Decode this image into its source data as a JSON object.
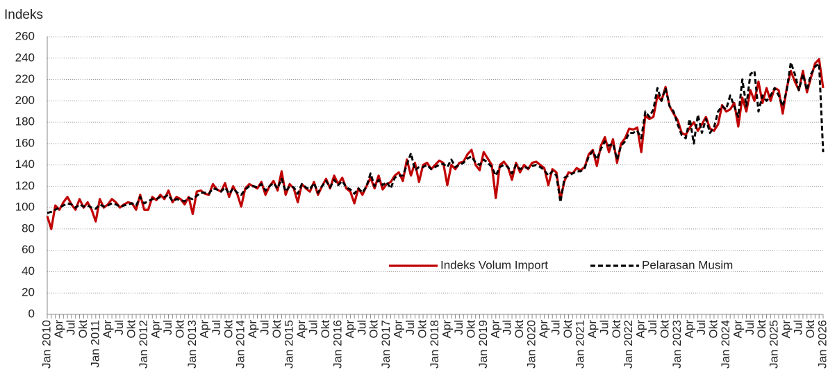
{
  "chart_data": {
    "type": "line",
    "ylabel": "Indeks",
    "ylim": [
      0,
      260
    ],
    "yticks": [
      0,
      20,
      40,
      60,
      80,
      100,
      120,
      140,
      160,
      180,
      200,
      220,
      240,
      260
    ],
    "grid": true,
    "categories": [
      "Jan 2010",
      null,
      null,
      "Apr",
      null,
      null,
      "Jul",
      null,
      null,
      "Okt",
      null,
      null,
      "Jan 2011",
      null,
      null,
      "Apr",
      null,
      null,
      "Jul",
      null,
      null,
      "Okt",
      null,
      null,
      "Jan 2012",
      null,
      null,
      "Apr",
      null,
      null,
      "Jul",
      null,
      null,
      "Okt",
      null,
      null,
      "Jan 2013",
      null,
      null,
      "Apr",
      null,
      null,
      "Jul",
      null,
      null,
      "Okt",
      null,
      null,
      "Jan 2014",
      null,
      null,
      "Apr",
      null,
      null,
      "Jul",
      null,
      null,
      "Okt",
      null,
      null,
      "Jan 2015",
      null,
      null,
      "Apr",
      null,
      null,
      "Jul",
      null,
      null,
      "Okt",
      null,
      null,
      "Jan 2016",
      null,
      null,
      "Apr",
      null,
      null,
      "Jul",
      null,
      null,
      "Okt",
      null,
      null,
      "Jan 2017",
      null,
      null,
      "Apr",
      null,
      null,
      "Jul",
      null,
      null,
      "Okt",
      null,
      null,
      "Jan 2018",
      null,
      null,
      "Apr",
      null,
      null,
      "Jul",
      null,
      null,
      "Okt",
      null,
      null,
      "Jan 2019",
      null,
      null,
      "Apr",
      null,
      null,
      "Jul",
      null,
      null,
      "Okt",
      null,
      null,
      "Jan 2020",
      null,
      null,
      "Apr",
      null,
      null,
      "Jul",
      null,
      null,
      "Okt",
      null,
      null,
      "Jan 2021",
      null,
      null,
      "Apr",
      null,
      null,
      "Jul",
      null,
      null,
      "Okt",
      null,
      null,
      "Jan 2022",
      null,
      null,
      "Apr",
      null,
      null,
      "Jul",
      null,
      null,
      "Okt",
      null,
      null,
      "Jan 2023",
      null,
      null,
      "Apr",
      null,
      null,
      "Jul",
      null,
      null,
      "Okt",
      null,
      null,
      "Jan 2024",
      null,
      null,
      "Apr",
      null,
      null,
      "Jul",
      null,
      null,
      "Okt",
      null,
      null,
      "Jan 2025",
      null,
      null,
      "Apr",
      null,
      null,
      "Jul",
      null,
      null,
      "Okt",
      null,
      null,
      "Jan 2026"
    ],
    "series": [
      {
        "name": "Indeks Volum Import",
        "color": "#c00000",
        "style": "solid",
        "values": [
          92,
          80,
          102,
          98,
          105,
          110,
          103,
          98,
          108,
          100,
          105,
          98,
          87,
          108,
          100,
          103,
          108,
          105,
          100,
          103,
          105,
          104,
          98,
          112,
          98,
          98,
          110,
          107,
          112,
          108,
          116,
          105,
          110,
          108,
          103,
          110,
          94,
          115,
          116,
          113,
          112,
          122,
          117,
          115,
          123,
          110,
          120,
          113,
          101,
          118,
          122,
          120,
          118,
          124,
          112,
          120,
          125,
          116,
          134,
          112,
          122,
          118,
          105,
          122,
          118,
          115,
          124,
          112,
          120,
          127,
          118,
          130,
          122,
          128,
          118,
          115,
          104,
          118,
          112,
          120,
          128,
          118,
          130,
          117,
          122,
          124,
          130,
          133,
          125,
          145,
          130,
          142,
          124,
          140,
          142,
          136,
          140,
          144,
          142,
          121,
          140,
          136,
          142,
          143,
          150,
          154,
          140,
          135,
          152,
          146,
          140,
          109,
          140,
          143,
          138,
          126,
          142,
          133,
          140,
          136,
          142,
          143,
          140,
          137,
          121,
          136,
          133,
          108,
          125,
          133,
          132,
          137,
          135,
          138,
          150,
          154,
          139,
          158,
          166,
          152,
          164,
          142,
          160,
          165,
          174,
          173,
          175,
          152,
          186,
          183,
          185,
          205,
          200,
          213,
          195,
          188,
          182,
          170,
          168,
          175,
          180,
          172,
          178,
          185,
          174,
          172,
          178,
          196,
          190,
          192,
          198,
          176,
          203,
          190,
          210,
          200,
          218,
          198,
          212,
          200,
          212,
          210,
          188,
          212,
          228,
          218,
          210,
          228,
          208,
          222,
          235,
          239,
          212
        ]
      },
      {
        "name": "Pelarasan Musim",
        "color": "#000000",
        "style": "dashed",
        "values": [
          95,
          96,
          98,
          100,
          102,
          104,
          103,
          100,
          103,
          101,
          102,
          100,
          99,
          103,
          101,
          102,
          104,
          103,
          101,
          102,
          103,
          104,
          102,
          110,
          104,
          106,
          108,
          108,
          110,
          110,
          112,
          106,
          108,
          107,
          106,
          109,
          108,
          111,
          114,
          114,
          113,
          118,
          117,
          115,
          119,
          113,
          118,
          114,
          112,
          117,
          120,
          120,
          119,
          122,
          116,
          120,
          123,
          118,
          127,
          115,
          120,
          119,
          113,
          122,
          119,
          117,
          123,
          114,
          120,
          125,
          119,
          126,
          121,
          125,
          119,
          117,
          113,
          118,
          114,
          120,
          132,
          120,
          126,
          121,
          124,
          118,
          128,
          130,
          130,
          140,
          151,
          135,
          138,
          138,
          140,
          136,
          138,
          140,
          141,
          138,
          145,
          138,
          140,
          142,
          146,
          148,
          142,
          140,
          145,
          142,
          138,
          130,
          138,
          140,
          138,
          132,
          140,
          136,
          138,
          137,
          139,
          140,
          138,
          135,
          130,
          134,
          130,
          105,
          128,
          130,
          132,
          134,
          134,
          137,
          148,
          153,
          145,
          155,
          162,
          158,
          160,
          145,
          158,
          162,
          170,
          170,
          172,
          165,
          190,
          185,
          192,
          212,
          200,
          212,
          195,
          190,
          178,
          168,
          165,
          183,
          160,
          187,
          170,
          183,
          170,
          175,
          190,
          195,
          192,
          205,
          195,
          185,
          220,
          195,
          225,
          228,
          190,
          205,
          200,
          205,
          212,
          205,
          195,
          210,
          236,
          225,
          210,
          225,
          210,
          225,
          232,
          235,
          152
        ]
      }
    ]
  }
}
